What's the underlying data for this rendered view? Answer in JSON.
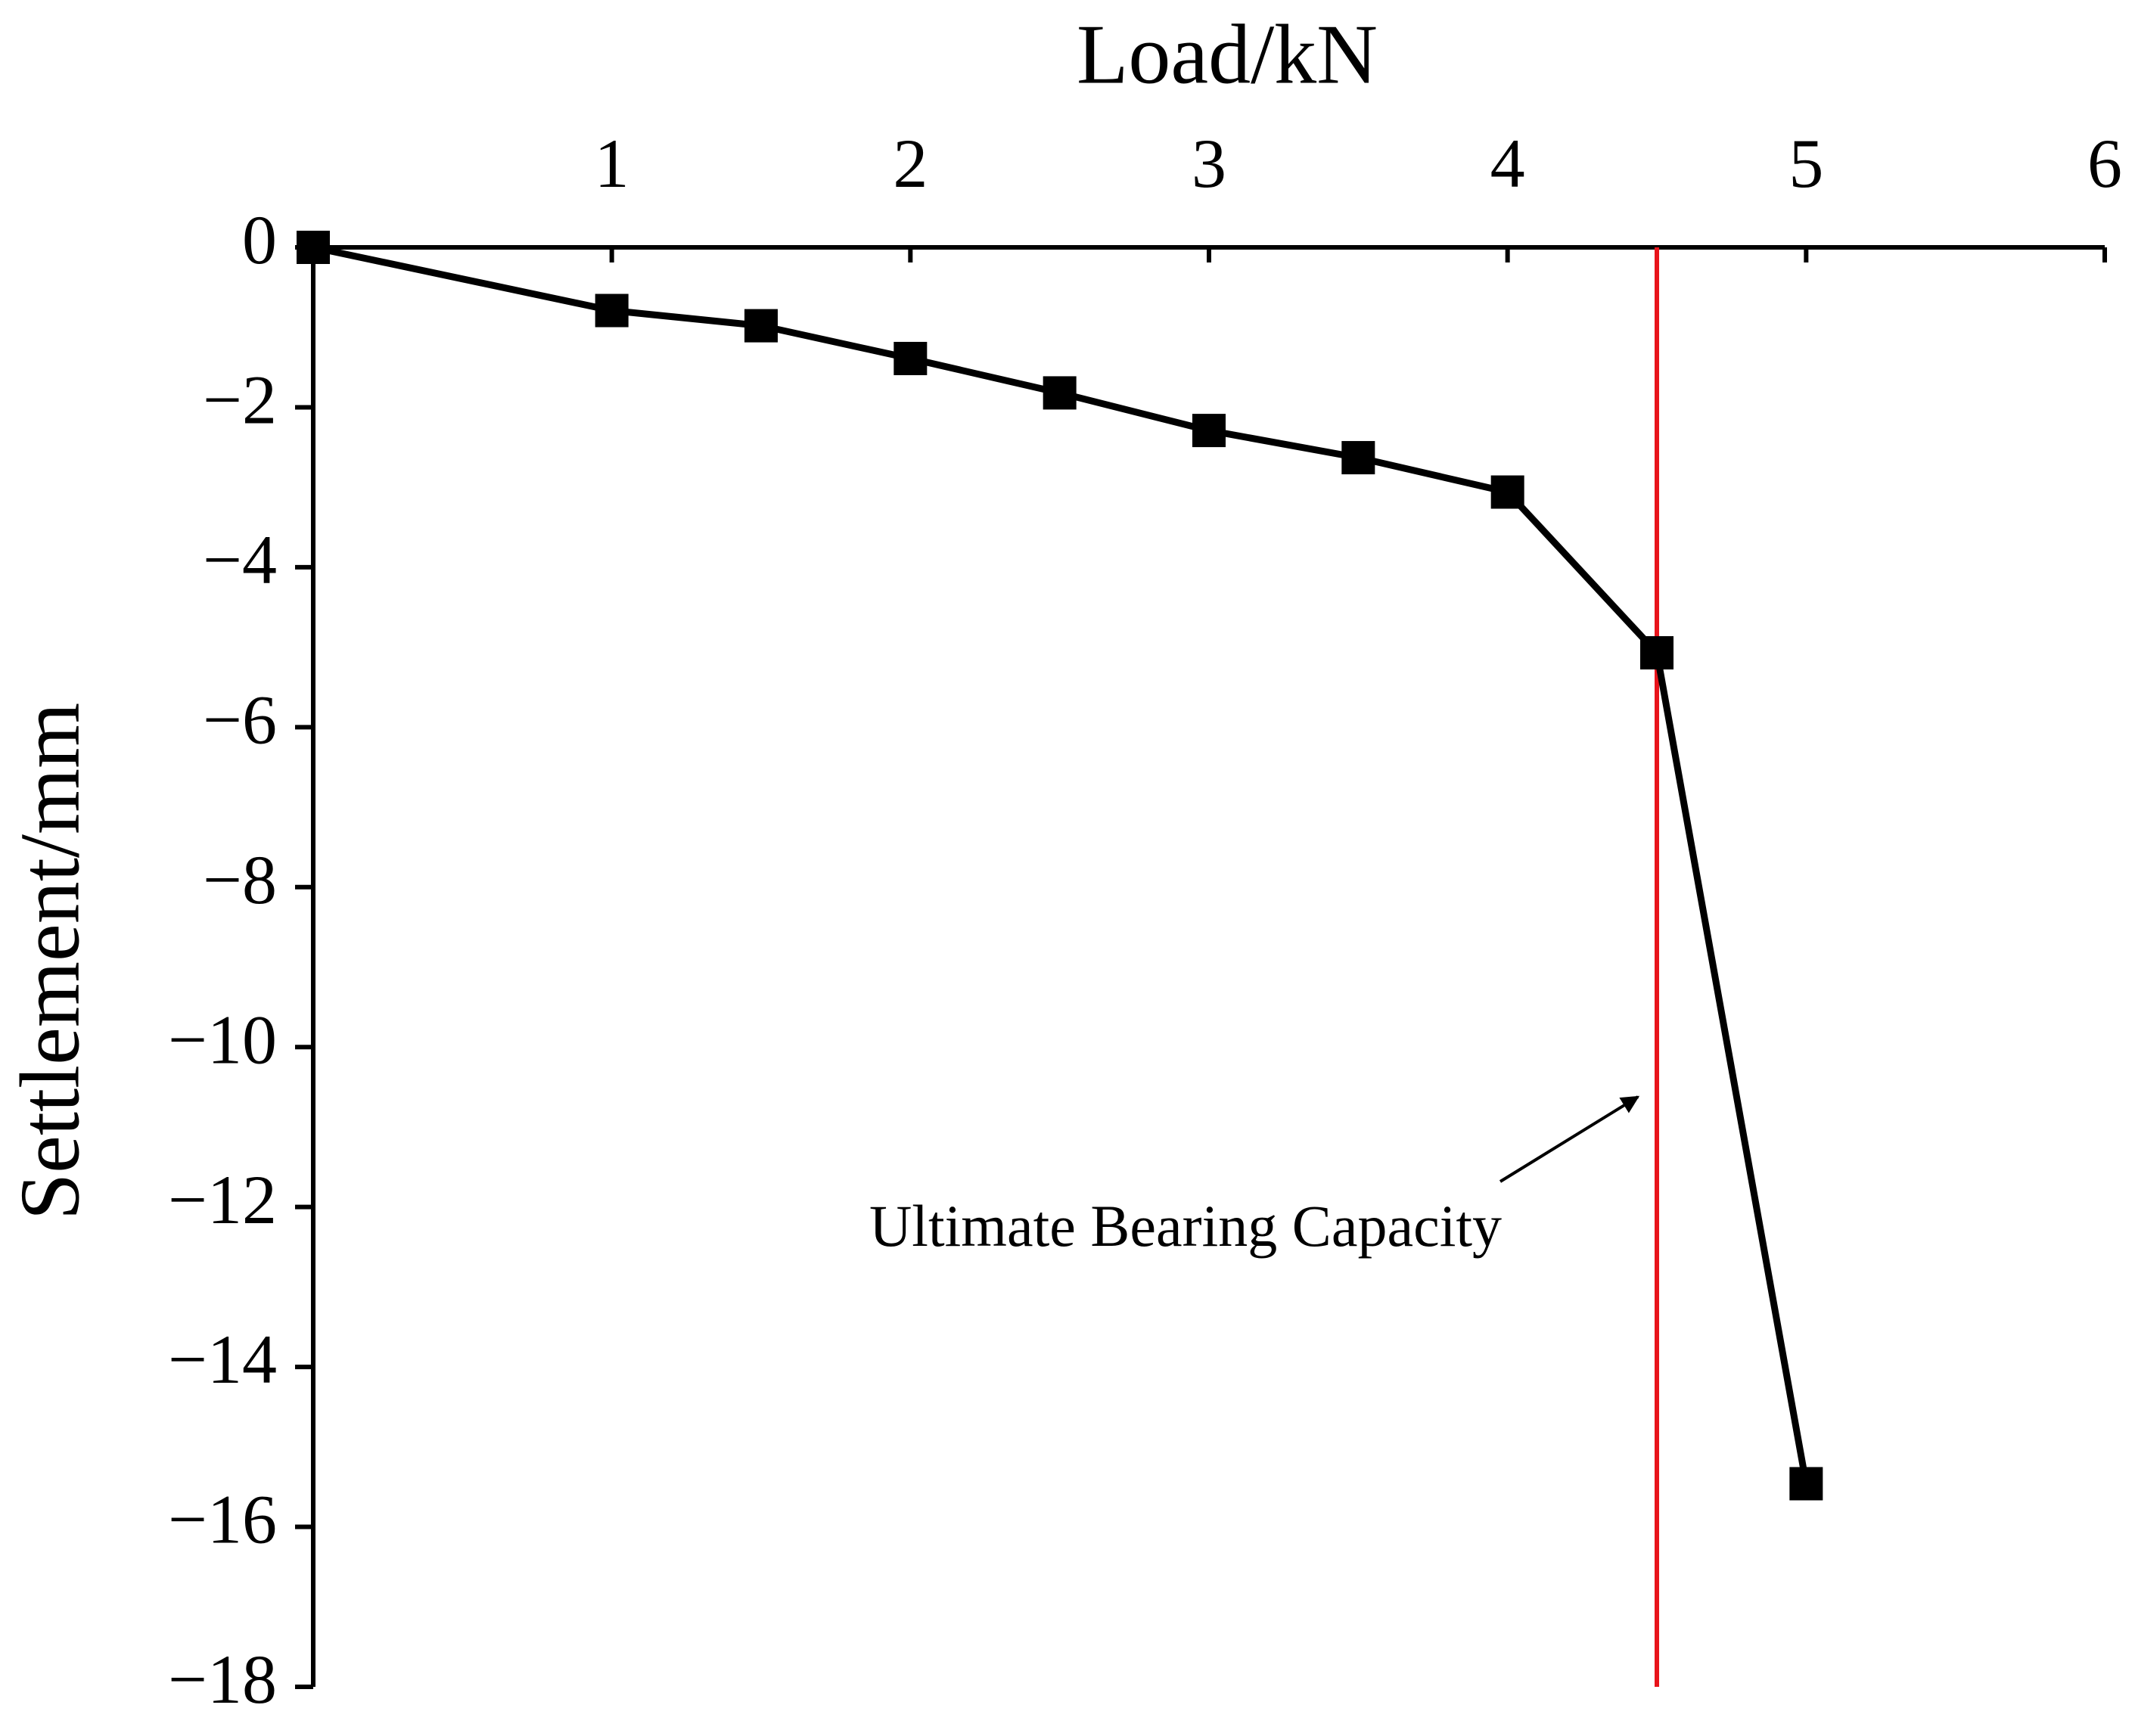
{
  "chart_data": {
    "type": "line",
    "xlabel": "Load/kN",
    "ylabel": "Settlement/mm",
    "x": [
      0,
      1,
      1.5,
      2,
      2.5,
      3,
      3.5,
      4,
      4.5,
      5
    ],
    "series": [
      {
        "color": "#000000",
        "values": [
          0,
          -0.79,
          -0.98,
          -1.39,
          -1.82,
          -2.29,
          -2.63,
          -3.06,
          -5.07,
          -15.46
        ]
      }
    ],
    "xlim": [
      0,
      6
    ],
    "xticks": [
      1,
      2,
      3,
      4,
      5,
      6
    ],
    "ylim": [
      -18,
      0
    ],
    "yticks": [
      0,
      {
        "value": -2,
        "label": "−2"
      },
      {
        "value": -4,
        "label": "−4"
      },
      {
        "value": -6,
        "label": "−6"
      },
      {
        "value": -8,
        "label": "−8"
      },
      {
        "value": -10,
        "label": "−10"
      },
      {
        "value": -12,
        "label": "−12"
      },
      {
        "value": -14,
        "label": "−14"
      },
      {
        "value": -16,
        "label": "−16"
      },
      {
        "value": -18,
        "label": "−18"
      }
    ],
    "vline": {
      "x": 4.5,
      "color": "#e8141b"
    },
    "annotation": "Ultimate Bearing Capacity",
    "marker": "square"
  }
}
